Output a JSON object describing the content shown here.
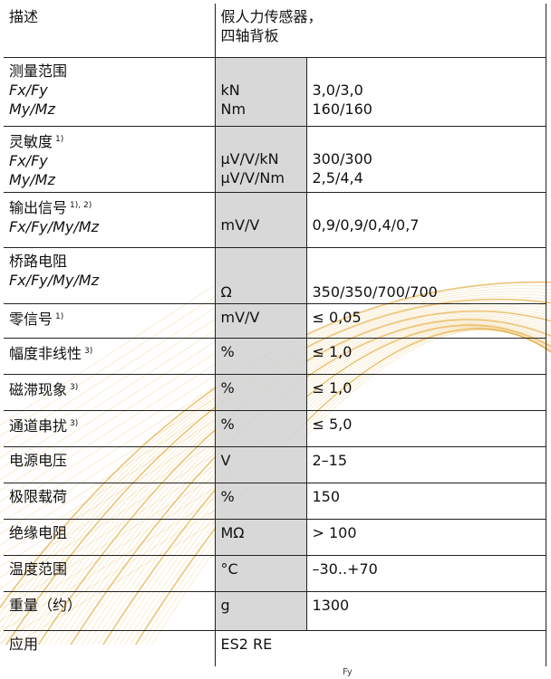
{
  "accent_color": "#e2a93a",
  "header": {
    "label": "描述",
    "value_line1": "假人力传感器，",
    "value_line2": "四轴背板"
  },
  "rows": [
    {
      "label": "测量范围",
      "sub": [
        "Fx/Fy",
        "My/Mz"
      ],
      "units": [
        "kN",
        "Nm"
      ],
      "values": [
        "3,0/3,0",
        "160/160"
      ]
    },
    {
      "label": "灵敏度",
      "note": "1)",
      "sub": [
        "Fx/Fy",
        "My/Mz"
      ],
      "units": [
        "µV/V/kN",
        "µV/V/Nm"
      ],
      "values": [
        "300/300",
        "2,5/4,4"
      ]
    },
    {
      "label": "输出信号",
      "note": "1), 2)",
      "sub": [
        "Fx/Fy/My/Mz"
      ],
      "units": [
        "mV/V"
      ],
      "values": [
        "0,9/0,9/0,4/0,7"
      ]
    },
    {
      "label": "桥路电阻",
      "sub": [
        "Fx/Fy/My/Mz"
      ],
      "units": [
        "Ω"
      ],
      "values": [
        "350/350/700/700"
      ]
    },
    {
      "label": "零信号",
      "note": "1)",
      "unit": "mV/V",
      "value": "≤ 0,05"
    },
    {
      "label": "幅度非线性",
      "note": "3)",
      "unit": "%",
      "value": "≤ 1,0"
    },
    {
      "label": "磁滞现象",
      "note": "3)",
      "unit": "%",
      "value": "≤ 1,0"
    },
    {
      "label": "通道串扰",
      "note": "3)",
      "unit": "%",
      "value": "≤ 5,0"
    },
    {
      "label": "电源电压",
      "unit": "V",
      "value": "2–15"
    },
    {
      "label": "极限载荷",
      "unit": "%",
      "value": "150"
    },
    {
      "label": "绝缘电阻",
      "unit": "MΩ",
      "value": "> 100"
    },
    {
      "label": "温度范围",
      "unit": "°C",
      "value": "–30..+70"
    },
    {
      "label": "重量（约）",
      "unit": "g",
      "value": "1300"
    }
  ],
  "application": {
    "label": "应用",
    "value": "ES2 RE"
  },
  "footer_label": "Fy"
}
